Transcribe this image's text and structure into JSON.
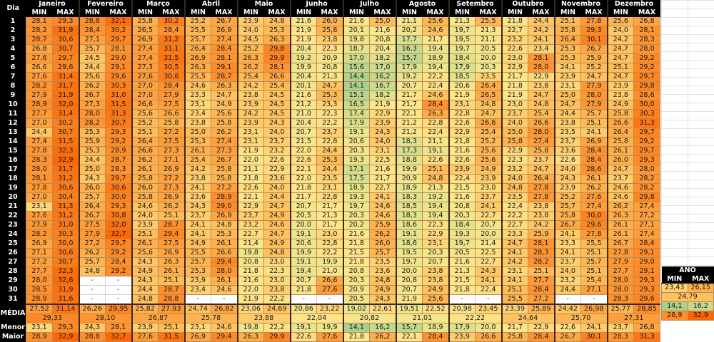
{
  "header": {
    "day_label": "Dia",
    "min_label": "MIN",
    "max_label": "MAX",
    "months": [
      "Janeiro",
      "Fevereiro",
      "Março",
      "Abril",
      "Maio",
      "Junho",
      "Julho",
      "Agosto",
      "Setembro",
      "Outubro",
      "Novembro",
      "Dezembro"
    ]
  },
  "labels": {
    "average": "MÉDIA",
    "lowest": "Menor",
    "highest": "Maior",
    "year": "ANO",
    "blank": "-"
  },
  "colors": {
    "header_bg": "#000000",
    "header_text": "#ffffff",
    "scale_low": "#a8d08d",
    "scale_mid": "#ffe58a",
    "scale_high": "#ff6a00"
  },
  "days": [
    {
      "day": "1",
      "values": [
        "28,1",
        "29,3",
        "28,8",
        "32,1",
        "25,8",
        "30,2",
        "25,2",
        "26,7",
        "23,9",
        "24,8",
        "21,6",
        "26,0",
        "21,6",
        "25,0",
        "21,1",
        "25,6",
        "21,3",
        "25,5",
        "21,8",
        "24,4",
        "25,1",
        "27,8",
        "25,6",
        "26,8"
      ]
    },
    {
      "day": "2",
      "values": [
        "28,2",
        "31,9",
        "28,4",
        "30,2",
        "26,5",
        "28,4",
        "25,5",
        "26,9",
        "24,0",
        "25,3",
        "21,9",
        "25,8",
        "20,1",
        "21,6",
        "20,2",
        "24,6",
        "19,7",
        "21,3",
        "22,7",
        "24,2",
        "25,8",
        "29,3",
        "24,0",
        "28,1"
      ]
    },
    {
      "day": "3",
      "values": [
        "28,7",
        "30,6",
        "27,1",
        "29,7",
        "26,9",
        "31,2",
        "25,7",
        "27,4",
        "24,5",
        "26,3",
        "21,9",
        "23,8",
        "19,8",
        "20,8",
        "17,7",
        "21,7",
        "19,5",
        "21,1",
        "23,2",
        "24,1",
        "26,4",
        "30,1",
        "24,2",
        "28,3"
      ]
    },
    {
      "day": "4",
      "values": [
        "26,8",
        "30,7",
        "25,7",
        "28,1",
        "27,4",
        "31,1",
        "26,4",
        "28,4",
        "25,2",
        "29,8",
        "20,4",
        "22,3",
        "18,7",
        "20,4",
        "16,3",
        "19,4",
        "19,7",
        "20,5",
        "22,6",
        "23,4",
        "25,3",
        "26,7",
        "24,7",
        "28,0"
      ]
    },
    {
      "day": "5",
      "values": [
        "27,6",
        "29,7",
        "24,5",
        "29,0",
        "27,4",
        "31,5",
        "26,9",
        "28,1",
        "26,3",
        "29,9",
        "19,2",
        "20,9",
        "17,0",
        "18,2",
        "15,7",
        "18,9",
        "18,4",
        "20,0",
        "23,0",
        "28,1",
        "25,3",
        "25,9",
        "24,7",
        "29,2"
      ]
    },
    {
      "day": "6",
      "values": [
        "26,6",
        "29,6",
        "24,4",
        "29,1",
        "27,3",
        "30,5",
        "26,3",
        "29,1",
        "26,2",
        "28,1",
        "19,9",
        "20,8",
        "15,6",
        "17,0",
        "17,9",
        "19,4",
        "17,9",
        "20,3",
        "22,9",
        "28,0",
        "24,1",
        "25,2",
        "25,1",
        "29,2"
      ]
    },
    {
      "day": "7",
      "values": [
        "27,6",
        "31,4",
        "25,6",
        "29,6",
        "27,6",
        "30,6",
        "25,5",
        "28,7",
        "25,4",
        "26,6",
        "20,4",
        "21,3",
        "14,4",
        "16,2",
        "19,2",
        "22,2",
        "18,5",
        "23,5",
        "21,7",
        "22,9",
        "23,9",
        "24,7",
        "24,7",
        "29,7"
      ]
    },
    {
      "day": "8",
      "values": [
        "28,2",
        "31,7",
        "26,2",
        "30,3",
        "27,0",
        "28,4",
        "24,6",
        "26,3",
        "24,2",
        "25,4",
        "20,1",
        "24,7",
        "14,1",
        "16,7",
        "20,7",
        "22,4",
        "20,6",
        "26,4",
        "21,8",
        "23,8",
        "23,1",
        "27,9",
        "23,9",
        "29,8"
      ]
    },
    {
      "day": "9",
      "values": [
        "27,9",
        "31,9",
        "26,7",
        "31,0",
        "27,0",
        "27,9",
        "23,3",
        "24,7",
        "23,8",
        "24,5",
        "21,6",
        "25,3",
        "15,1",
        "18,2",
        "21,7",
        "24,6",
        "21,9",
        "26,5",
        "21,9",
        "24,7",
        "25,0",
        "28,0",
        "23,8",
        "28,6"
      ]
    },
    {
      "day": "10",
      "values": [
        "28,9",
        "32,0",
        "27,3",
        "31,5",
        "26,6",
        "27,5",
        "23,1",
        "24,9",
        "23,9",
        "24,5",
        "21,2",
        "23,3",
        "16,5",
        "21,9",
        "21,7",
        "28,4",
        "23,1",
        "24,8",
        "23,0",
        "24,8",
        "24,7",
        "27,9",
        "24,9",
        "30,0"
      ]
    },
    {
      "day": "11",
      "values": [
        "27,7",
        "31,4",
        "28,0",
        "31,3",
        "25,6",
        "26,6",
        "23,4",
        "25,6",
        "24,2",
        "24,5",
        "21,0",
        "22,3",
        "17,4",
        "22,9",
        "22,1",
        "26,3",
        "22,8",
        "24,7",
        "23,7",
        "25,4",
        "24,4",
        "25,7",
        "25,8",
        "30,3"
      ]
    },
    {
      "day": "12",
      "values": [
        "27,0",
        "30,2",
        "28,2",
        "30,7",
        "25,2",
        "25,8",
        "23,8",
        "25,8",
        "23,9",
        "24,3",
        "20,4",
        "22,2",
        "17,9",
        "23,9",
        "21,2",
        "22,8",
        "22,6",
        "26,6",
        "24,0",
        "26,6",
        "23,8",
        "25,1",
        "26,6",
        "31,3"
      ]
    },
    {
      "day": "13",
      "values": [
        "24,4",
        "30,7",
        "25,3",
        "29,3",
        "25,1",
        "27,2",
        "25,0",
        "26,2",
        "23,1",
        "24,0",
        "20,7",
        "23,7",
        "19,1",
        "24,3",
        "21,2",
        "22,4",
        "22,9",
        "25,4",
        "25,0",
        "28,0",
        "23,5",
        "24,1",
        "26,4",
        "29,7"
      ]
    },
    {
      "day": "14",
      "values": [
        "27,4",
        "31,5",
        "25,9",
        "29,2",
        "26,4",
        "27,5",
        "25,3",
        "27,4",
        "23,1",
        "23,7",
        "21,5",
        "22,8",
        "20,6",
        "24,0",
        "18,3",
        "21,1",
        "21,8",
        "25,2",
        "25,8",
        "27,4",
        "23,7",
        "26,9",
        "25,8",
        "29,2"
      ]
    },
    {
      "day": "15",
      "values": [
        "27,8",
        "32,3",
        "25,3",
        "28,9",
        "26,6",
        "27,3",
        "26,1",
        "27,3",
        "21,9",
        "23,2",
        "22,0",
        "24,4",
        "20,3",
        "23,1",
        "17,3",
        "19,1",
        "21,6",
        "25,6",
        "22,9",
        "25,8",
        "23,6",
        "28,4",
        "26,1",
        "29,7"
      ]
    },
    {
      "day": "16",
      "values": [
        "28,3",
        "32,9",
        "24,4",
        "28,7",
        "26,2",
        "27,1",
        "25,4",
        "26,7",
        "22,0",
        "22,6",
        "22,6",
        "25,3",
        "19,3",
        "22,5",
        "18,8",
        "22,6",
        "22,6",
        "25,6",
        "22,3",
        "23,7",
        "22,6",
        "28,4",
        "26,0",
        "29,3"
      ]
    },
    {
      "day": "17",
      "values": [
        "28,0",
        "31,7",
        "25,0",
        "28,3",
        "26,1",
        "26,9",
        "24,2",
        "25,8",
        "21,1",
        "22,9",
        "22,1",
        "24,4",
        "17,1",
        "21,6",
        "19,9",
        "25,1",
        "23,9",
        "24,9",
        "23,2",
        "24,7",
        "24,0",
        "28,6",
        "24,7",
        "28,0"
      ]
    },
    {
      "day": "18",
      "values": [
        "28,1",
        "31,2",
        "24,3",
        "29,7",
        "25,8",
        "27,2",
        "23,8",
        "25,8",
        "21,8",
        "23,6",
        "22,0",
        "23,5",
        "17,5",
        "21,7",
        "20,9",
        "24,8",
        "22,4",
        "23,9",
        "24,0",
        "26,4",
        "24,3",
        "26,1",
        "23,7",
        "28,2"
      ]
    },
    {
      "day": "19",
      "values": [
        "27,8",
        "30,6",
        "26,0",
        "30,6",
        "26,0",
        "27,3",
        "24,1",
        "27,2",
        "22,6",
        "24,0",
        "21,8",
        "23,1",
        "18,9",
        "22,7",
        "18,9",
        "21,3",
        "21,5",
        "23,0",
        "24,8",
        "27,8",
        "23,9",
        "26,2",
        "24,6",
        "28,2"
      ]
    },
    {
      "day": "20",
      "values": [
        "27,0",
        "30,4",
        "25,7",
        "30,0",
        "25,8",
        "26,9",
        "23,6",
        "28,9",
        "22,1",
        "24,4",
        "21,7",
        "22,8",
        "19,3",
        "24,1",
        "18,3",
        "19,2",
        "21,6",
        "23,7",
        "23,5",
        "27,8",
        "25,2",
        "27,6",
        "24,6",
        "29,8"
      ]
    },
    {
      "day": "21",
      "values": [
        "23,1",
        "31,3",
        "26,4",
        "29,3",
        "24,6",
        "26,2",
        "24,3",
        "29,0",
        "22,9",
        "24,7",
        "20,7",
        "21,7",
        "19,7",
        "24,6",
        "18,5",
        "19,4",
        "20,8",
        "24,1",
        "22,4",
        "23,8",
        "25,7",
        "27,4",
        "26,2",
        "27,4"
      ]
    },
    {
      "day": "22",
      "values": [
        "27,6",
        "31,2",
        "26,7",
        "30,8",
        "24,0",
        "25,1",
        "23,7",
        "26,9",
        "23,7",
        "24,9",
        "20,5",
        "21,3",
        "20,3",
        "24,6",
        "18,3",
        "19,4",
        "20,3",
        "22,7",
        "22,2",
        "23,8",
        "25,8",
        "30,0",
        "26,3",
        "27,2"
      ]
    },
    {
      "day": "23",
      "values": [
        "27,9",
        "31,0",
        "27,5",
        "32,0",
        "23,9",
        "28,7",
        "24,1",
        "24,8",
        "23,2",
        "24,6",
        "20,0",
        "21,7",
        "20,2",
        "25,9",
        "18,6",
        "22,3",
        "18,4",
        "20,7",
        "22,7",
        "24,2",
        "26,7",
        "29,6",
        "26,1",
        "27,1"
      ]
    },
    {
      "day": "24",
      "values": [
        "28,2",
        "30,3",
        "27,9",
        "32,7",
        "25,1",
        "29,4",
        "24,1",
        "25,3",
        "22,7",
        "24,7",
        "19,1",
        "23,0",
        "21,6",
        "26,2",
        "19,1",
        "22,9",
        "19,3",
        "20,0",
        "23,3",
        "25,9",
        "24,1",
        "27,8",
        "26,1",
        "27,4"
      ]
    },
    {
      "day": "25",
      "values": [
        "26,9",
        "30,0",
        "27,2",
        "29,7",
        "26,1",
        "27,5",
        "24,9",
        "26,1",
        "21,4",
        "24,9",
        "20,6",
        "22,8",
        "21,8",
        "26,0",
        "18,6",
        "23,1",
        "19,7",
        "21,4",
        "24,7",
        "28,1",
        "23,3",
        "25,5",
        "26,7",
        "28,4"
      ]
    },
    {
      "day": "26",
      "values": [
        "27,1",
        "30,6",
        "26,2",
        "29,2",
        "25,6",
        "26,9",
        "25,5",
        "26,6",
        "19,8",
        "24,8",
        "19,9",
        "22,2",
        "21,5",
        "25,7",
        "19,5",
        "20,3",
        "20,5",
        "22,5",
        "24,1",
        "28,3",
        "24,1",
        "25,1",
        "27,8",
        "29,1"
      ]
    },
    {
      "day": "27",
      "values": [
        "27,2",
        "30,7",
        "25,7",
        "28,4",
        "24,3",
        "26,3",
        "25,7",
        "29,4",
        "20,8",
        "23,0",
        "19,1",
        "19,9",
        "21,8",
        "23,5",
        "19,7",
        "20,7",
        "21,6",
        "22,7",
        "24,2",
        "28,2",
        "23,7",
        "25,7",
        "27,9",
        "29,0"
      ]
    },
    {
      "day": "28",
      "values": [
        "27,7",
        "32,3",
        "24,8",
        "29,2",
        "24,9",
        "26,1",
        "25,3",
        "28,0",
        "21,8",
        "22,3",
        "19,4",
        "21,0",
        "20,8",
        "23,6",
        "20,0",
        "23,8",
        "21,3",
        "24,3",
        "23,1",
        "25,1",
        "24,0",
        "25,1",
        "27,7",
        "29,1"
      ]
    },
    {
      "day": "29",
      "values": [
        "28,0",
        "32,6",
        "-",
        "-",
        "24,3",
        "25,1",
        "23,9",
        "26,1",
        "21,6",
        "23,0",
        "20,7",
        "26,6",
        "20,3",
        "24,8",
        "20,8",
        "23,8",
        "21,5",
        "24,1",
        "24,1",
        "27,7",
        "23,2",
        "25,4",
        "28,0",
        "29,3"
      ]
    },
    {
      "day": "30",
      "values": [
        "28,5",
        "31,9",
        "-",
        "-",
        "24,4",
        "28,7",
        "23,4",
        "24,6",
        "22,0",
        "23,8",
        "21,8",
        "27,6",
        "20,9",
        "24,9",
        "20,7",
        "24,9",
        "21,8",
        "22,4",
        "25,1",
        "28,4",
        "24,4",
        "27,1",
        "28,0",
        "29,3"
      ]
    },
    {
      "day": "31",
      "values": [
        "28,9",
        "31,6",
        "-",
        "-",
        "24,8",
        "28,8",
        "-",
        "-",
        "21,9",
        "22,2",
        "-",
        "-",
        "20,5",
        "24,3",
        "21,9",
        "25,6",
        "-",
        "-",
        "25,5",
        "27,2",
        "-",
        "-",
        "28,3",
        "29,6"
      ]
    }
  ],
  "average_row": [
    "27,52",
    "31,14",
    "26,26",
    "29,95",
    "25,82",
    "27,93",
    "24,74",
    "26,82",
    "23,06",
    "24,69",
    "20,86",
    "23,22",
    "19,02",
    "22,61",
    "19,51",
    "22,52",
    "20,98",
    "23,45",
    "23,39",
    "25,89",
    "24,42",
    "26,98",
    "25,77",
    "28,85"
  ],
  "monthly_average": [
    "29,33",
    "28,10",
    "26,87",
    "25,78",
    "23,88",
    "22,04",
    "20,82",
    "21,01",
    "22,22",
    "24,64",
    "25,70",
    "27,31"
  ],
  "lowest_row": [
    "23,1",
    "29,3",
    "24,3",
    "28,1",
    "23,9",
    "25,1",
    "23,1",
    "24,6",
    "19,8",
    "22,2",
    "19,1",
    "19,9",
    "14,1",
    "16,2",
    "15,7",
    "18,9",
    "17,9",
    "20,0",
    "21,7",
    "22,9",
    "22,6",
    "24,1",
    "23,7",
    "26,8"
  ],
  "highest_row": [
    "28,9",
    "32,9",
    "28,8",
    "32,7",
    "27,6",
    "31,5",
    "26,9",
    "29,4",
    "26,3",
    "29,9",
    "22,6",
    "27,6",
    "21,8",
    "26,2",
    "22,1",
    "28,4",
    "23,9",
    "26,6",
    "25,8",
    "28,4",
    "26,7",
    "30,1",
    "28,3",
    "31,3"
  ],
  "year": {
    "avg_min": "23,43",
    "avg_max": "26,15",
    "avg": "24,79",
    "lowest_min": "14,1",
    "lowest_max": "16,2",
    "highest_min": "28,9",
    "highest_max": "32,9"
  }
}
